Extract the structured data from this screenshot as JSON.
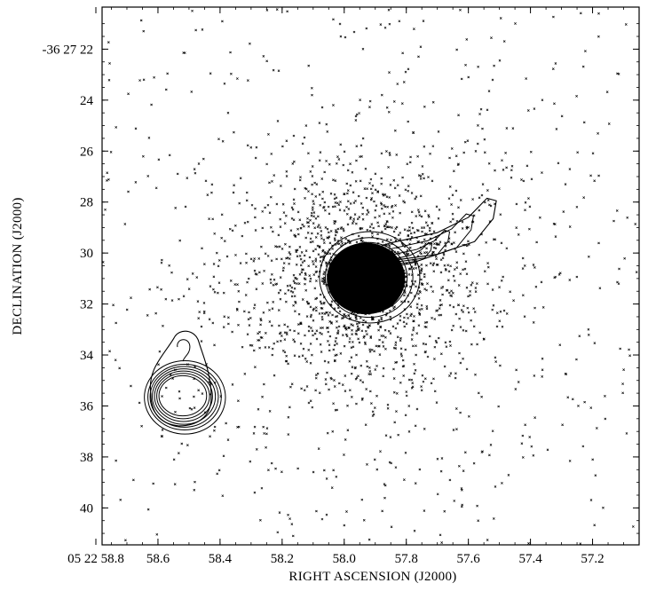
{
  "chart_data": {
    "type": "scatter",
    "title": "",
    "xlabel": "RIGHT ASCENSION (J2000)",
    "ylabel": "DECLINATION (J2000)",
    "x_unit": "seconds of RA (05 22 ss)",
    "y_unit": "arcsec of Dec (-36 27 ss)",
    "xlim": [
      58.78,
      57.05
    ],
    "ylim": [
      41.45,
      20.35
    ],
    "x_ticks": [
      {
        "value": 58.8,
        "label": "05 22 58.8"
      },
      {
        "value": 58.6,
        "label": "58.6"
      },
      {
        "value": 58.4,
        "label": "58.4"
      },
      {
        "value": 58.2,
        "label": "58.2"
      },
      {
        "value": 58.0,
        "label": "58.0"
      },
      {
        "value": 57.8,
        "label": "57.8"
      },
      {
        "value": 57.6,
        "label": "57.6"
      },
      {
        "value": 57.4,
        "label": "57.4"
      },
      {
        "value": 57.2,
        "label": "57.2"
      }
    ],
    "y_ticks": [
      {
        "value": 22,
        "label": "-36 27 22"
      },
      {
        "value": 24,
        "label": "24"
      },
      {
        "value": 26,
        "label": "26"
      },
      {
        "value": 28,
        "label": "28"
      },
      {
        "value": 30,
        "label": "30"
      },
      {
        "value": 32,
        "label": "32"
      },
      {
        "value": 34,
        "label": "34"
      },
      {
        "value": 36,
        "label": "36"
      },
      {
        "value": 38,
        "label": "38"
      },
      {
        "value": 40,
        "label": "40"
      }
    ],
    "series": [
      {
        "kind": "x-ray-events",
        "color": "#000000",
        "point_count": 2200,
        "sources": [
          {
            "x": 57.94,
            "y": 30.9,
            "density": "very high",
            "spread_arcsec": 2.5
          },
          {
            "x": 58.52,
            "y": 35.6,
            "density": "low"
          }
        ],
        "background": "sparse random events over full field"
      },
      {
        "kind": "radio-contours",
        "color": "#000000",
        "components": [
          {
            "name": "core",
            "x": 57.93,
            "y": 31.0,
            "radius_arcsec": [
              0.5,
              0.7,
              0.9,
              1.1,
              1.3,
              1.5,
              1.7,
              1.95
            ],
            "filled": true
          },
          {
            "name": "jet",
            "path": [
              [
                57.97,
                30.1
              ],
              [
                57.85,
                29.6
              ],
              [
                57.7,
                29.2
              ],
              [
                57.6,
                28.6
              ],
              [
                57.54,
                27.85
              ],
              [
                57.51,
                27.95
              ],
              [
                57.52,
                28.65
              ],
              [
                57.58,
                29.55
              ],
              [
                57.7,
                30.05
              ],
              [
                57.82,
                30.25
              ],
              [
                57.92,
                30.7
              ]
            ]
          },
          {
            "name": "secondary",
            "x": 58.52,
            "y": 35.6,
            "radius_arcsec": [
              0.65,
              0.75,
              0.85,
              0.95,
              1.05,
              1.15,
              1.3
            ],
            "filled": false,
            "extension": [
              58.52,
              33.2
            ]
          }
        ]
      }
    ],
    "grid": false,
    "legend": "none"
  }
}
